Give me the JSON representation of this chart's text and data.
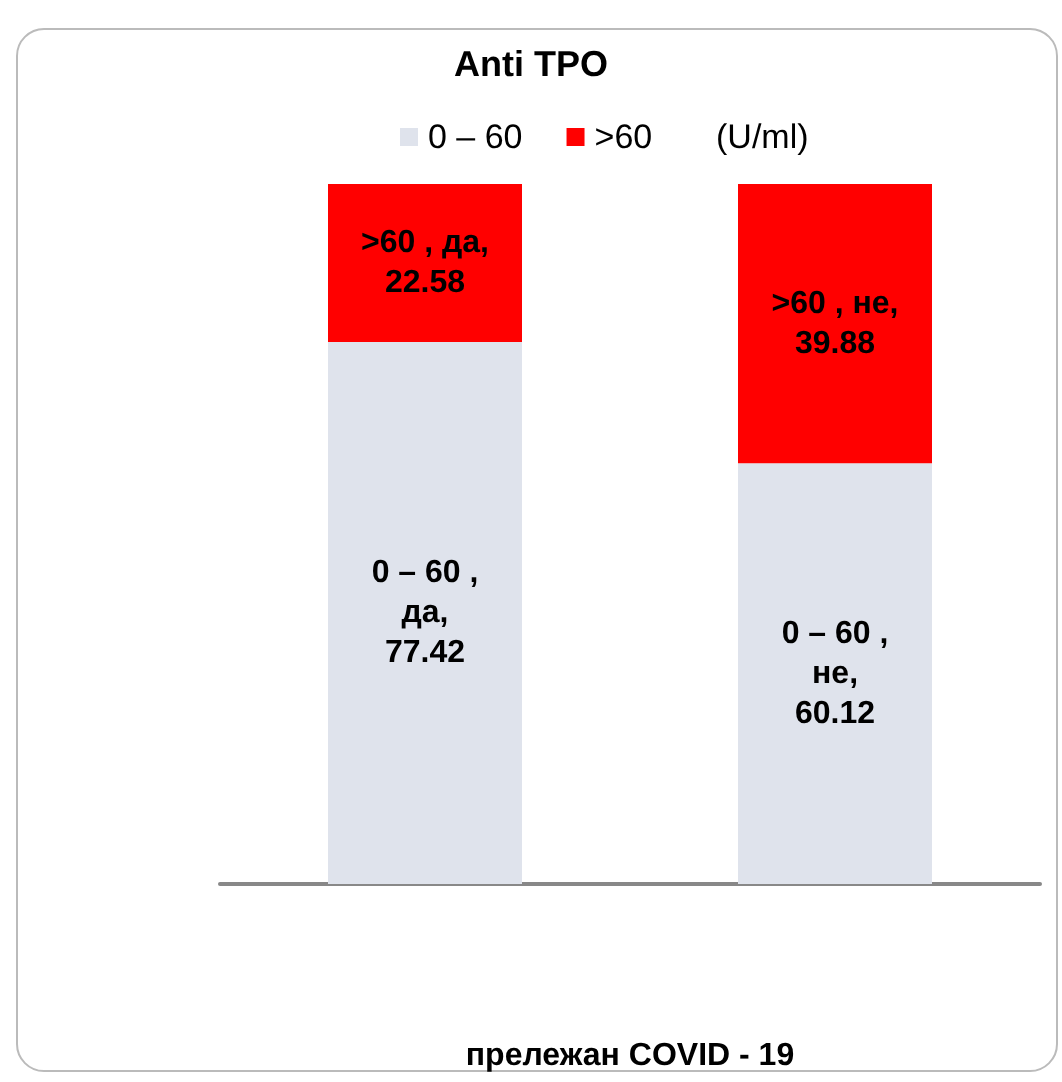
{
  "chart_data": {
    "type": "bar",
    "title": "Anti TPO",
    "xlabel": "прележан COVID - 19",
    "legend_title": "(U/ml)",
    "categories": [
      null,
      null
    ],
    "stacked": true,
    "legend": "top",
    "tick_labels": false,
    "grid": false,
    "series": [
      {
        "name": "0 – 60",
        "color": "#dfe3ec",
        "values": [
          77.42,
          60.12
        ],
        "value_labels": [
          "0 – 60 , да, 77.42",
          "0 – 60 , не, 60.12"
        ]
      },
      {
        "name": ">60",
        "color": "#ff0000",
        "values": [
          22.58,
          39.88
        ],
        "value_labels": [
          ">60 , да, 22.58",
          ">60 , не, 39.88"
        ]
      }
    ]
  }
}
